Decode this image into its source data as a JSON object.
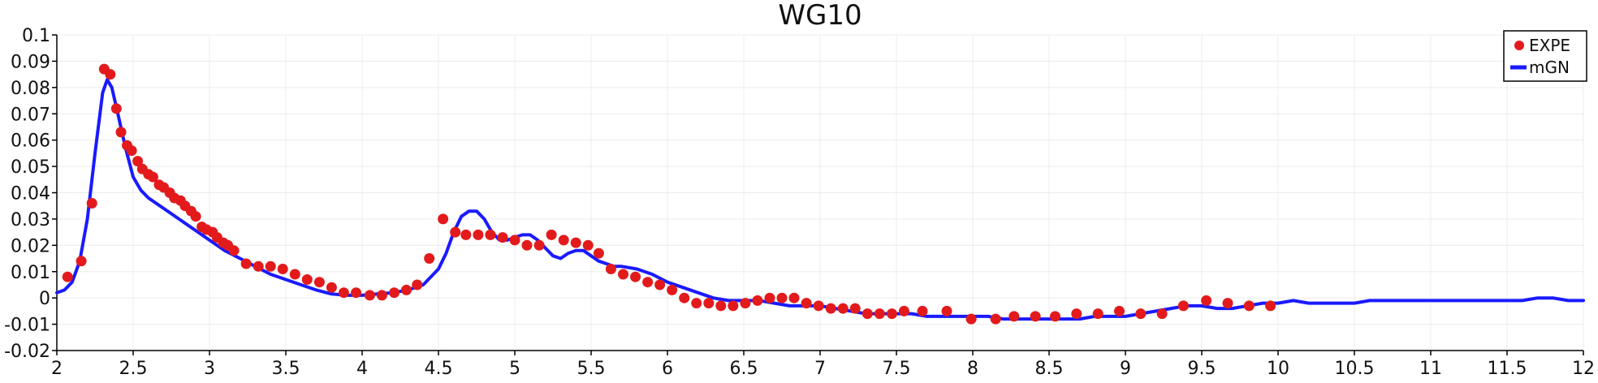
{
  "chart_data": {
    "type": "line",
    "title": "WG10",
    "xlabel": "",
    "ylabel": "",
    "xlim": [
      2,
      12
    ],
    "ylim": [
      -0.02,
      0.1
    ],
    "xticks": [
      "2",
      "2.5",
      "3",
      "3.5",
      "4",
      "4.5",
      "5",
      "5.5",
      "6",
      "6.5",
      "7",
      "7.5",
      "8",
      "8.5",
      "9",
      "9.5",
      "10",
      "10.5",
      "11",
      "11.5",
      "12"
    ],
    "yticks": [
      "0.1",
      "0.09",
      "0.08",
      "0.07",
      "0.06",
      "0.05",
      "0.04",
      "0.03",
      "0.02",
      "0.01",
      "0",
      "-0.01",
      "-0.02"
    ],
    "grid": true,
    "legend_position": "top-right",
    "colors": {
      "EXPE": "#e31a1c",
      "mGN": "#1a1aff"
    },
    "series": [
      {
        "name": "EXPE",
        "style": "markers",
        "x": [
          2.07,
          2.16,
          2.23,
          2.31,
          2.35,
          2.39,
          2.42,
          2.46,
          2.49,
          2.53,
          2.56,
          2.6,
          2.63,
          2.67,
          2.7,
          2.74,
          2.77,
          2.81,
          2.84,
          2.88,
          2.91,
          2.95,
          2.98,
          3.02,
          3.05,
          3.09,
          3.12,
          3.16,
          3.24,
          3.32,
          3.4,
          3.48,
          3.56,
          3.64,
          3.72,
          3.8,
          3.88,
          3.96,
          4.05,
          4.13,
          4.21,
          4.29,
          4.36,
          4.44,
          4.53,
          4.61,
          4.68,
          4.76,
          4.84,
          4.92,
          5.0,
          5.08,
          5.16,
          5.24,
          5.32,
          5.4,
          5.48,
          5.55,
          5.63,
          5.71,
          5.79,
          5.87,
          5.95,
          6.03,
          6.11,
          6.19,
          6.27,
          6.35,
          6.43,
          6.51,
          6.59,
          6.67,
          6.75,
          6.83,
          6.91,
          6.99,
          7.07,
          7.15,
          7.23,
          7.31,
          7.39,
          7.47,
          7.55,
          7.67,
          7.83,
          7.99,
          8.15,
          8.27,
          8.41,
          8.54,
          8.68,
          8.82,
          8.96,
          9.1,
          9.24,
          9.38,
          9.53,
          9.67,
          9.81,
          9.95
        ],
        "y": [
          0.008,
          0.014,
          0.036,
          0.087,
          0.085,
          0.072,
          0.063,
          0.058,
          0.056,
          0.052,
          0.049,
          0.047,
          0.046,
          0.043,
          0.042,
          0.04,
          0.038,
          0.037,
          0.035,
          0.033,
          0.031,
          0.027,
          0.026,
          0.025,
          0.023,
          0.021,
          0.02,
          0.018,
          0.013,
          0.012,
          0.012,
          0.011,
          0.009,
          0.007,
          0.006,
          0.004,
          0.002,
          0.002,
          0.001,
          0.001,
          0.002,
          0.003,
          0.005,
          0.015,
          0.03,
          0.025,
          0.024,
          0.024,
          0.024,
          0.023,
          0.022,
          0.02,
          0.02,
          0.024,
          0.022,
          0.021,
          0.02,
          0.017,
          0.011,
          0.009,
          0.008,
          0.006,
          0.005,
          0.003,
          0.0,
          -0.002,
          -0.002,
          -0.003,
          -0.003,
          -0.002,
          -0.001,
          0.0,
          0.0,
          0.0,
          -0.002,
          -0.003,
          -0.004,
          -0.004,
          -0.004,
          -0.006,
          -0.006,
          -0.006,
          -0.005,
          -0.005,
          -0.005,
          -0.008,
          -0.008,
          -0.007,
          -0.007,
          -0.007,
          -0.006,
          -0.006,
          -0.005,
          -0.006,
          -0.006,
          -0.003,
          -0.001,
          -0.002,
          -0.003,
          -0.003
        ]
      },
      {
        "name": "mGN",
        "style": "line",
        "x": [
          2.0,
          2.05,
          2.1,
          2.15,
          2.2,
          2.25,
          2.3,
          2.33,
          2.36,
          2.4,
          2.45,
          2.5,
          2.55,
          2.6,
          2.7,
          2.8,
          2.9,
          3.0,
          3.1,
          3.2,
          3.3,
          3.4,
          3.5,
          3.6,
          3.7,
          3.8,
          3.9,
          4.0,
          4.1,
          4.2,
          4.3,
          4.4,
          4.5,
          4.55,
          4.6,
          4.65,
          4.7,
          4.75,
          4.8,
          4.85,
          4.9,
          4.95,
          5.0,
          5.05,
          5.1,
          5.15,
          5.2,
          5.25,
          5.3,
          5.35,
          5.4,
          5.45,
          5.5,
          5.55,
          5.6,
          5.65,
          5.7,
          5.8,
          5.9,
          6.0,
          6.1,
          6.2,
          6.3,
          6.4,
          6.5,
          6.6,
          6.7,
          6.8,
          6.9,
          7.0,
          7.1,
          7.2,
          7.3,
          7.4,
          7.5,
          7.6,
          7.7,
          7.8,
          7.9,
          8.0,
          8.1,
          8.2,
          8.3,
          8.4,
          8.5,
          8.6,
          8.7,
          8.8,
          8.9,
          9.0,
          9.1,
          9.2,
          9.3,
          9.4,
          9.5,
          9.6,
          9.7,
          9.8,
          9.9,
          10.0,
          10.1,
          10.2,
          10.3,
          10.4,
          10.5,
          10.6,
          10.7,
          10.8,
          10.9,
          11.0,
          11.1,
          11.2,
          11.3,
          11.4,
          11.5,
          11.6,
          11.7,
          11.8,
          11.9,
          12.0
        ],
        "y": [
          0.002,
          0.003,
          0.006,
          0.014,
          0.03,
          0.055,
          0.078,
          0.083,
          0.08,
          0.07,
          0.057,
          0.046,
          0.041,
          0.038,
          0.034,
          0.03,
          0.026,
          0.022,
          0.018,
          0.015,
          0.012,
          0.009,
          0.007,
          0.005,
          0.003,
          0.0015,
          0.001,
          0.001,
          0.0015,
          0.002,
          0.003,
          0.005,
          0.011,
          0.017,
          0.025,
          0.031,
          0.033,
          0.033,
          0.03,
          0.025,
          0.022,
          0.022,
          0.023,
          0.024,
          0.024,
          0.022,
          0.019,
          0.016,
          0.015,
          0.017,
          0.018,
          0.018,
          0.016,
          0.014,
          0.013,
          0.012,
          0.012,
          0.011,
          0.009,
          0.006,
          0.004,
          0.002,
          0.0,
          -0.001,
          -0.001,
          -0.001,
          -0.002,
          -0.003,
          -0.003,
          -0.003,
          -0.004,
          -0.005,
          -0.006,
          -0.006,
          -0.006,
          -0.006,
          -0.007,
          -0.007,
          -0.007,
          -0.007,
          -0.007,
          -0.008,
          -0.008,
          -0.008,
          -0.008,
          -0.008,
          -0.008,
          -0.007,
          -0.007,
          -0.007,
          -0.006,
          -0.005,
          -0.004,
          -0.003,
          -0.003,
          -0.004,
          -0.004,
          -0.003,
          -0.002,
          -0.002,
          -0.001,
          -0.002,
          -0.002,
          -0.002,
          -0.002,
          -0.001,
          -0.001,
          -0.001,
          -0.001,
          -0.001,
          -0.001,
          -0.001,
          -0.001,
          -0.001,
          -0.001,
          -0.001,
          0.0,
          0.0,
          -0.001,
          -0.001
        ]
      }
    ]
  }
}
